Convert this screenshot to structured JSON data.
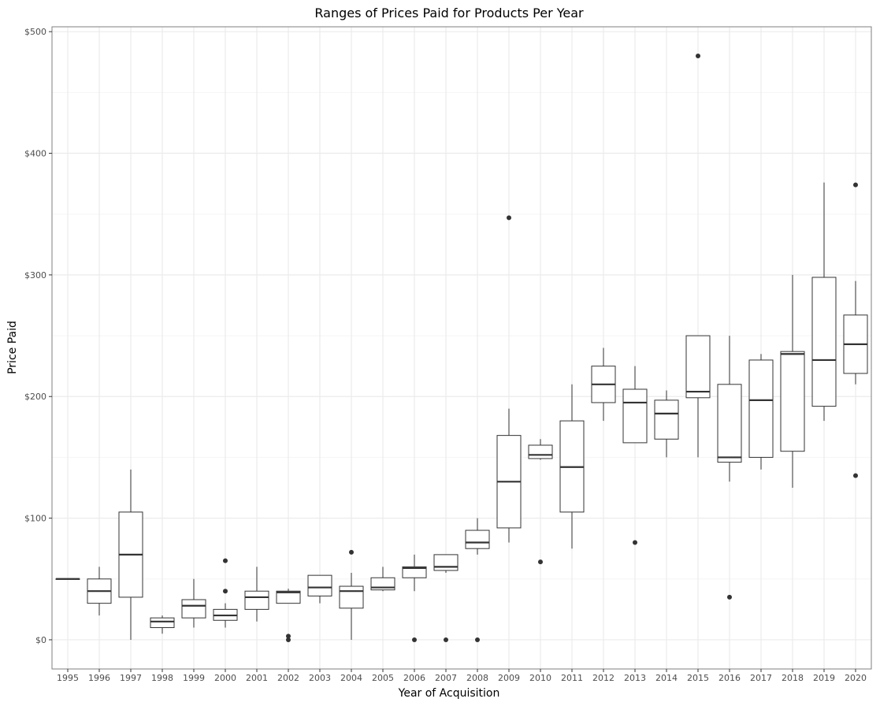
{
  "chart_data": {
    "type": "boxplot",
    "title": "Ranges of Prices Paid for Products Per Year",
    "xlabel": "Year of Acquisition",
    "ylabel": "Price Paid",
    "ylim": [
      -24,
      504
    ],
    "yticks": [
      0,
      100,
      200,
      300,
      400,
      500
    ],
    "ytick_labels": [
      "$0",
      "$100",
      "$200",
      "$300",
      "$400",
      "$500"
    ],
    "grid": true,
    "colors": {
      "box": "#333333",
      "grid_major": "#ebebeb",
      "grid_minor": "#f5f5f5",
      "panel_border": "#7f7f7f",
      "outlier": "#333333"
    },
    "categories": [
      "1995",
      "1996",
      "1997",
      "1998",
      "1999",
      "2000",
      "2001",
      "2002",
      "2003",
      "2004",
      "2005",
      "2006",
      "2007",
      "2008",
      "2009",
      "2010",
      "2011",
      "2012",
      "2013",
      "2014",
      "2015",
      "2016",
      "2017",
      "2018",
      "2019",
      "2020"
    ],
    "boxes": [
      {
        "x": "1995",
        "min": 50,
        "q1": 50,
        "median": 50,
        "q3": 50,
        "max": 50,
        "outliers": []
      },
      {
        "x": "1996",
        "min": 20,
        "q1": 30,
        "median": 40,
        "q3": 50,
        "max": 60,
        "outliers": []
      },
      {
        "x": "1997",
        "min": 0,
        "q1": 35,
        "median": 70,
        "q3": 105,
        "max": 140,
        "outliers": []
      },
      {
        "x": "1998",
        "min": 5,
        "q1": 10,
        "median": 15,
        "q3": 18,
        "max": 20,
        "outliers": []
      },
      {
        "x": "1999",
        "min": 10,
        "q1": 18,
        "median": 28,
        "q3": 33,
        "max": 50,
        "outliers": []
      },
      {
        "x": "2000",
        "min": 10,
        "q1": 16,
        "median": 20,
        "q3": 25,
        "max": 30,
        "outliers": [
          40,
          65
        ]
      },
      {
        "x": "2001",
        "min": 15,
        "q1": 25,
        "median": 35,
        "q3": 40,
        "max": 60,
        "outliers": []
      },
      {
        "x": "2002",
        "min": 30,
        "q1": 30,
        "median": 39,
        "q3": 40,
        "max": 42,
        "outliers": [
          0,
          3
        ]
      },
      {
        "x": "2003",
        "min": 30,
        "q1": 36,
        "median": 43,
        "q3": 53,
        "max": 53,
        "outliers": []
      },
      {
        "x": "2004",
        "min": 0,
        "q1": 26,
        "median": 40,
        "q3": 44,
        "max": 55,
        "outliers": [
          72
        ]
      },
      {
        "x": "2005",
        "min": 40,
        "q1": 41,
        "median": 43,
        "q3": 51,
        "max": 60,
        "outliers": []
      },
      {
        "x": "2006",
        "min": 40,
        "q1": 51,
        "median": 59,
        "q3": 60,
        "max": 70,
        "outliers": [
          0
        ]
      },
      {
        "x": "2007",
        "min": 55,
        "q1": 57,
        "median": 60,
        "q3": 70,
        "max": 70,
        "outliers": [
          0
        ]
      },
      {
        "x": "2008",
        "min": 70,
        "q1": 75,
        "median": 80,
        "q3": 90,
        "max": 100,
        "outliers": [
          0
        ]
      },
      {
        "x": "2009",
        "min": 80,
        "q1": 92,
        "median": 130,
        "q3": 168,
        "max": 190,
        "outliers": [
          347
        ]
      },
      {
        "x": "2010",
        "min": 148,
        "q1": 149,
        "median": 152,
        "q3": 160,
        "max": 165,
        "outliers": [
          64
        ]
      },
      {
        "x": "2011",
        "min": 75,
        "q1": 105,
        "median": 142,
        "q3": 180,
        "max": 210,
        "outliers": []
      },
      {
        "x": "2012",
        "min": 180,
        "q1": 195,
        "median": 210,
        "q3": 225,
        "max": 240,
        "outliers": []
      },
      {
        "x": "2013",
        "min": 162,
        "q1": 162,
        "median": 195,
        "q3": 206,
        "max": 225,
        "outliers": [
          80
        ]
      },
      {
        "x": "2014",
        "min": 150,
        "q1": 165,
        "median": 186,
        "q3": 197,
        "max": 205,
        "outliers": []
      },
      {
        "x": "2015",
        "min": 150,
        "q1": 199,
        "median": 204,
        "q3": 250,
        "max": 250,
        "outliers": [
          480
        ]
      },
      {
        "x": "2016",
        "min": 130,
        "q1": 146,
        "median": 150,
        "q3": 210,
        "max": 250,
        "outliers": [
          35
        ]
      },
      {
        "x": "2017",
        "min": 140,
        "q1": 150,
        "median": 197,
        "q3": 230,
        "max": 235,
        "outliers": []
      },
      {
        "x": "2018",
        "min": 125,
        "q1": 155,
        "median": 235,
        "q3": 237,
        "max": 300,
        "outliers": []
      },
      {
        "x": "2019",
        "min": 180,
        "q1": 192,
        "median": 230,
        "q3": 298,
        "max": 376,
        "outliers": []
      },
      {
        "x": "2020",
        "min": 210,
        "q1": 219,
        "median": 243,
        "q3": 267,
        "max": 295,
        "outliers": [
          135,
          374
        ]
      }
    ]
  }
}
